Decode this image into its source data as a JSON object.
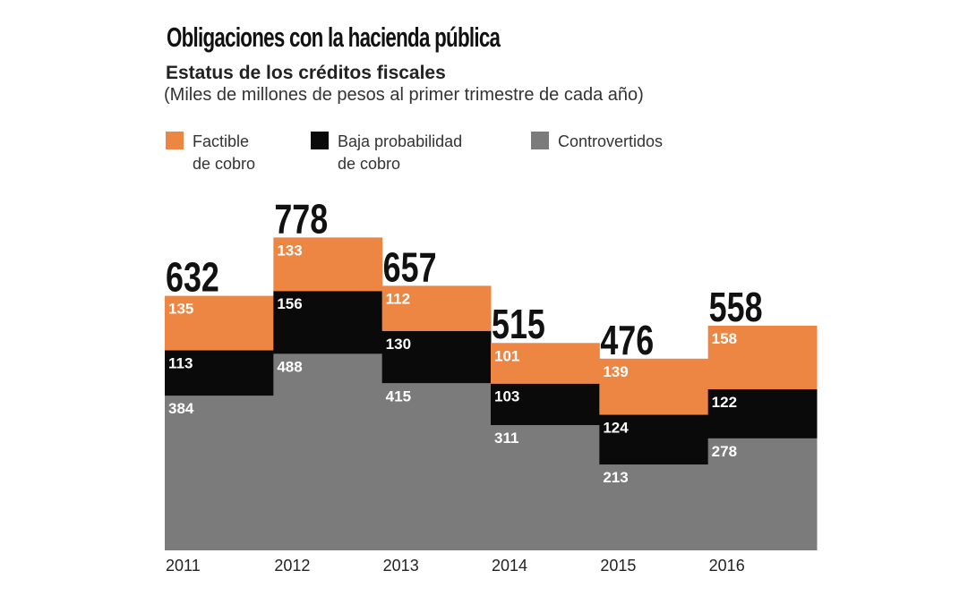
{
  "chart_data": {
    "type": "bar",
    "stacked": true,
    "title": "Obligaciones con la hacienda pública",
    "subtitle": "Estatus de los créditos fiscales",
    "note": "(Miles de millones de pesos al primer trimestre de cada año)",
    "categories": [
      "2011",
      "2012",
      "2013",
      "2014",
      "2015",
      "2016"
    ],
    "totals": [
      632,
      778,
      657,
      515,
      476,
      558
    ],
    "series": [
      {
        "name": "Controvertidos",
        "color": "#7b7b7b",
        "values": [
          384,
          488,
          415,
          311,
          213,
          278
        ]
      },
      {
        "name": "Baja probabilidad de cobro",
        "color": "#0a0a0a",
        "values": [
          113,
          156,
          130,
          103,
          124,
          122
        ]
      },
      {
        "name": "Factible de cobro",
        "color": "#ee8643",
        "values": [
          135,
          133,
          112,
          101,
          139,
          158
        ]
      }
    ],
    "legend": {
      "placement": "top-left",
      "items": [
        {
          "line1": "Factible",
          "line2": "de cobro",
          "color": "#ee8643"
        },
        {
          "line1": "Baja probabilidad",
          "line2": "de cobro",
          "color": "#0a0a0a"
        },
        {
          "line1": "Controvertidos",
          "line2": "",
          "color": "#7b7b7b"
        }
      ]
    },
    "ylim": [
      0,
      800
    ],
    "grid": false
  }
}
